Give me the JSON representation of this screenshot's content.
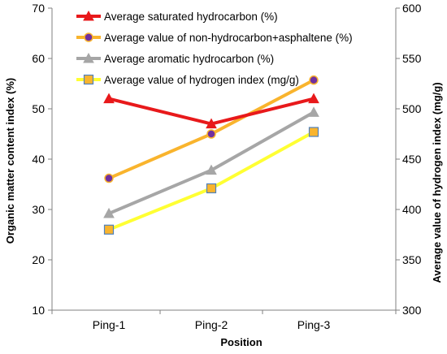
{
  "chart_data": {
    "type": "line",
    "categories": [
      "Ping-1",
      "Ping-2",
      "Ping-3"
    ],
    "xlabel": "Position",
    "ylabel": "Organic matter content index  (%)",
    "ylim": [
      10,
      70
    ],
    "y_ticks": [
      "10",
      "20",
      "30",
      "40",
      "50",
      "60",
      "70"
    ],
    "y2label": "Average value of hydrogen index   (mg/g)",
    "y2lim": [
      300,
      600
    ],
    "y2_ticks": [
      "300",
      "350",
      "400",
      "450",
      "500",
      "550",
      "600"
    ],
    "grid": false,
    "legend_position": "top-left",
    "series": [
      {
        "name": "Average saturated hydrocarbon (%)",
        "axis": "left",
        "values": [
          52,
          47,
          52
        ],
        "line_color": "#e8191b",
        "marker": "triangle",
        "marker_fill": "#e8191b",
        "marker_stroke": "#e8191b"
      },
      {
        "name": "Average value of non-hydrocarbon+asphaltene (%)",
        "axis": "left",
        "values": [
          36.2,
          45,
          55.7
        ],
        "line_color": "#f9b42d",
        "marker": "circle",
        "marker_fill": "#7030a0",
        "marker_stroke": "#f9b42d"
      },
      {
        "name": "Average aromatic hydrocarbon (%)",
        "axis": "left",
        "values": [
          29.2,
          37.8,
          49.3
        ],
        "line_color": "#a6a6a6",
        "marker": "triangle",
        "marker_fill": "#a6a6a6",
        "marker_stroke": "#a6a6a6"
      },
      {
        "name": "Average value of hydrogen index (mg/g)",
        "axis": "right",
        "values": [
          380,
          421,
          477
        ],
        "line_color": "#ffff33",
        "marker": "square",
        "marker_fill": "#f9b42d",
        "marker_stroke": "#4f81bd"
      }
    ]
  }
}
